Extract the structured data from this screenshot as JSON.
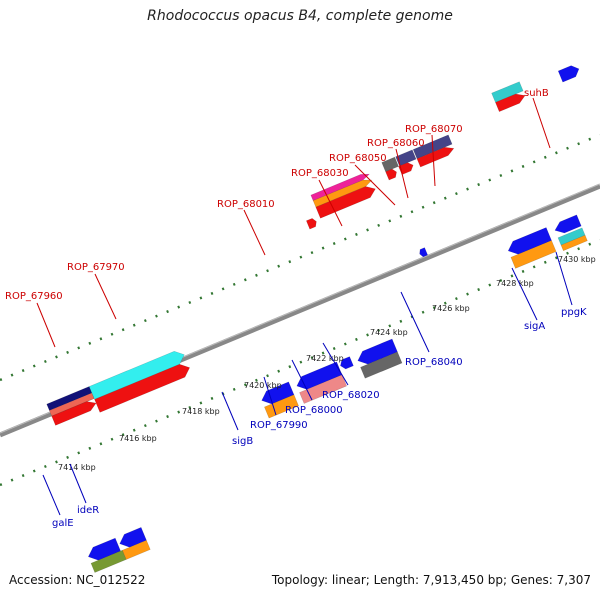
{
  "title": "Rhodococcus opacus B4, complete genome",
  "footer": {
    "accession": "Accession: NC_012522",
    "topology": "Topology: linear; Length: 7,913,450 bp; Genes: 7,307"
  },
  "scale_labels": [
    "7414 kbp",
    "7416 kbp",
    "7418 kbp",
    "7420 kbp",
    "7422 kbp",
    "7424 kbp",
    "7426 kbp",
    "7428 kbp",
    "7430 kbp"
  ],
  "forward_labels": [
    "ROP_67960",
    "ROP_67970",
    "ROP_68010",
    "ROP_68030",
    "ROP_68050",
    "ROP_68060",
    "ROP_68070",
    "suhB"
  ],
  "reverse_labels": [
    "galE",
    "ideR",
    "sigB",
    "ROP_67990",
    "ROP_68000",
    "ROP_68020",
    "ROP_68040",
    "sigA",
    "ppgK"
  ],
  "colors": {
    "red": "#ee1111",
    "blue": "#1111ee",
    "cyan": "#33eeee",
    "orange": "#ff9911",
    "navy": "#111177",
    "salmon": "#ee6655",
    "pink": "#ee8888",
    "magenta": "#ee2299",
    "gray": "#666666",
    "slate": "#444488",
    "olive": "#779933",
    "teal": "#33cccc",
    "axis": "#888888",
    "tick_green": "#337733"
  }
}
